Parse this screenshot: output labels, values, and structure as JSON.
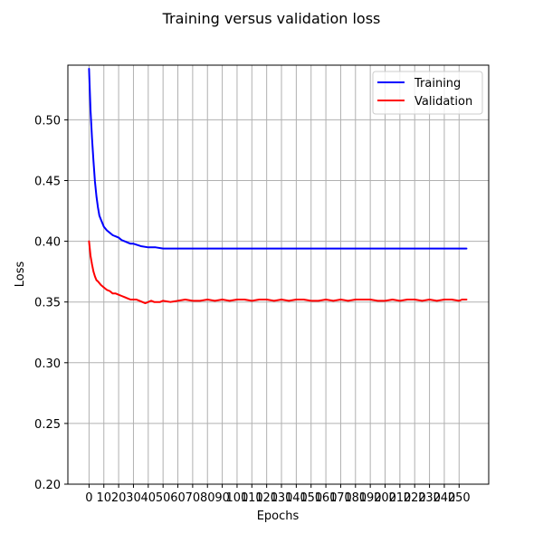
{
  "chart_data": {
    "type": "line",
    "title": "Training versus validation loss",
    "xlabel": "Epochs",
    "ylabel": "Loss",
    "xlim": [
      -14.3,
      270
    ],
    "ylim": [
      0.2,
      0.545
    ],
    "x_ticks": [
      0,
      10,
      20,
      30,
      40,
      50,
      60,
      70,
      80,
      90,
      100,
      110,
      120,
      130,
      140,
      150,
      160,
      170,
      180,
      190,
      200,
      210,
      220,
      230,
      240,
      250
    ],
    "x_tick_labels": [
      "0",
      "10",
      "20",
      "30",
      "40",
      "50",
      "60",
      "70",
      "80",
      "90",
      "100",
      "110",
      "120",
      "130",
      "140",
      "150",
      "160",
      "170",
      "180",
      "190",
      "200",
      "210",
      "220",
      "230",
      "240",
      "250"
    ],
    "y_ticks": [
      0.2,
      0.25,
      0.3,
      0.35,
      0.4,
      0.45,
      0.5
    ],
    "y_tick_labels": [
      "0.20",
      "0.25",
      "0.30",
      "0.35",
      "0.40",
      "0.45",
      "0.50"
    ],
    "grid": true,
    "legend_position": "top-right",
    "series": [
      {
        "name": "Training",
        "color": "#0000ff",
        "x": [
          0,
          1,
          2,
          3,
          4,
          5,
          6,
          7,
          8,
          9,
          10,
          12,
          14,
          16,
          18,
          20,
          22,
          24,
          26,
          28,
          30,
          35,
          40,
          45,
          50,
          55,
          60,
          70,
          80,
          90,
          100,
          110,
          120,
          130,
          140,
          150,
          160,
          170,
          180,
          190,
          200,
          210,
          220,
          230,
          240,
          250,
          255
        ],
        "y": [
          0.542,
          0.508,
          0.485,
          0.466,
          0.449,
          0.437,
          0.428,
          0.421,
          0.418,
          0.415,
          0.412,
          0.409,
          0.407,
          0.405,
          0.404,
          0.403,
          0.401,
          0.4,
          0.399,
          0.398,
          0.398,
          0.396,
          0.395,
          0.395,
          0.394,
          0.394,
          0.394,
          0.394,
          0.394,
          0.394,
          0.394,
          0.394,
          0.394,
          0.394,
          0.394,
          0.394,
          0.394,
          0.394,
          0.394,
          0.394,
          0.394,
          0.394,
          0.394,
          0.394,
          0.394,
          0.394,
          0.394
        ]
      },
      {
        "name": "Validation",
        "color": "#ff0000",
        "x": [
          0,
          1,
          2,
          3,
          4,
          5,
          6,
          8,
          10,
          12,
          14,
          16,
          18,
          20,
          22,
          24,
          26,
          28,
          30,
          32,
          34,
          36,
          38,
          40,
          42,
          44,
          46,
          48,
          50,
          55,
          60,
          65,
          70,
          75,
          80,
          85,
          90,
          95,
          100,
          105,
          110,
          115,
          120,
          125,
          130,
          135,
          140,
          145,
          150,
          155,
          160,
          165,
          170,
          175,
          180,
          185,
          190,
          195,
          200,
          205,
          210,
          215,
          220,
          225,
          230,
          235,
          240,
          245,
          250,
          252,
          255
        ],
        "y": [
          0.4,
          0.388,
          0.381,
          0.375,
          0.371,
          0.368,
          0.367,
          0.364,
          0.362,
          0.36,
          0.359,
          0.357,
          0.357,
          0.356,
          0.355,
          0.354,
          0.353,
          0.352,
          0.352,
          0.352,
          0.351,
          0.35,
          0.349,
          0.35,
          0.351,
          0.35,
          0.35,
          0.35,
          0.351,
          0.35,
          0.351,
          0.352,
          0.351,
          0.351,
          0.352,
          0.351,
          0.352,
          0.351,
          0.352,
          0.352,
          0.351,
          0.352,
          0.352,
          0.351,
          0.352,
          0.351,
          0.352,
          0.352,
          0.351,
          0.351,
          0.352,
          0.351,
          0.352,
          0.351,
          0.352,
          0.352,
          0.352,
          0.351,
          0.351,
          0.352,
          0.351,
          0.352,
          0.352,
          0.351,
          0.352,
          0.351,
          0.352,
          0.352,
          0.351,
          0.352,
          0.352
        ]
      }
    ]
  }
}
